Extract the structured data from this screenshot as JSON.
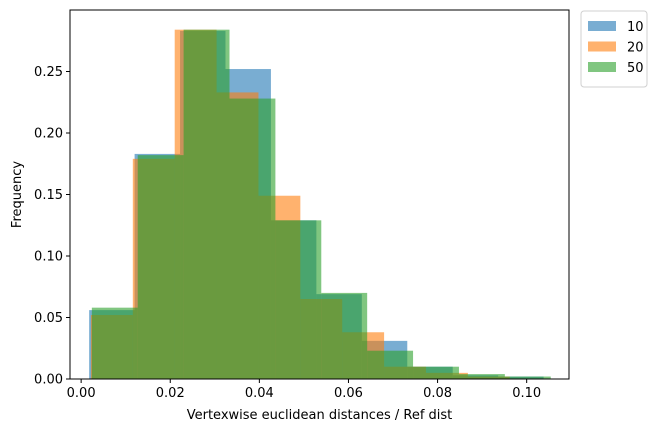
{
  "chart_data": {
    "type": "histogram",
    "title": "",
    "xlabel": "Vertexwise euclidean distances / Ref dist",
    "ylabel": "Frequency",
    "xlim": [
      -0.0025,
      0.1095
    ],
    "ylim": [
      0,
      0.3
    ],
    "xticks": [
      0.0,
      0.02,
      0.04,
      0.06,
      0.08,
      0.1
    ],
    "xtick_labels": [
      "0.00",
      "0.02",
      "0.04",
      "0.06",
      "0.08",
      "0.10"
    ],
    "yticks": [
      0.0,
      0.05,
      0.1,
      0.15,
      0.2,
      0.25
    ],
    "ytick_labels": [
      "0.00",
      "0.05",
      "0.10",
      "0.15",
      "0.20",
      "0.25"
    ],
    "grid": false,
    "legend_position": "outside-top-right",
    "series": [
      {
        "name": "10",
        "color": "#1f77b4",
        "opacity": 0.6,
        "bin_edges": [
          0.0018,
          0.012,
          0.0222,
          0.0324,
          0.0426,
          0.0528,
          0.063,
          0.0732,
          0.0834,
          0.0936,
          0.1038
        ],
        "values": [
          0.056,
          0.183,
          0.283,
          0.252,
          0.129,
          0.069,
          0.031,
          0.01,
          0.003,
          0.002
        ]
      },
      {
        "name": "20",
        "color": "#ff7f0e",
        "opacity": 0.6,
        "bin_edges": [
          0.0022,
          0.0116,
          0.021,
          0.0304,
          0.0398,
          0.0492,
          0.0586,
          0.068,
          0.0774,
          0.0868,
          0.0962
        ],
        "values": [
          0.052,
          0.179,
          0.284,
          0.233,
          0.149,
          0.065,
          0.038,
          0.01,
          0.005,
          0.002
        ]
      },
      {
        "name": "50",
        "color": "#2ca02c",
        "opacity": 0.6,
        "bin_edges": [
          0.0024,
          0.0127,
          0.023,
          0.0333,
          0.0436,
          0.0539,
          0.0642,
          0.0745,
          0.0848,
          0.0951,
          0.1054
        ],
        "values": [
          0.058,
          0.182,
          0.284,
          0.228,
          0.129,
          0.07,
          0.023,
          0.01,
          0.004,
          0.002
        ]
      }
    ]
  }
}
